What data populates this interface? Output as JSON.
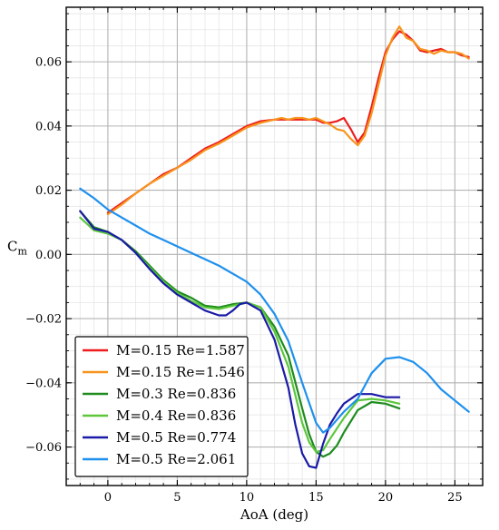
{
  "chart_data": {
    "type": "line",
    "title": "",
    "xlabel": "AoA (deg)",
    "ylabel": "C",
    "ylabel_sub": "m",
    "xlim": [
      -3,
      27
    ],
    "ylim": [
      -0.072,
      0.077
    ],
    "x_ticks": [
      0,
      5,
      10,
      15,
      20,
      25
    ],
    "x_tick_labels": [
      "0",
      "5",
      "10",
      "15",
      "20",
      "25"
    ],
    "y_ticks": [
      -0.06,
      -0.04,
      -0.02,
      0.0,
      0.02,
      0.04,
      0.06
    ],
    "y_tick_labels": [
      "−0.06",
      "−0.04",
      "−0.02",
      "0.00",
      "0.02",
      "0.04",
      "0.06"
    ],
    "grid": true,
    "legend_position": "lower-left",
    "series": [
      {
        "name": "M=0.15 Re=1.587",
        "color": "#ee1c1c",
        "x": [
          0.0,
          1.0,
          2.0,
          3.0,
          4.0,
          5.0,
          6.0,
          7.0,
          8.0,
          9.0,
          10.0,
          11.0,
          12.0,
          13.0,
          14.0,
          15.0,
          15.5,
          16.0,
          16.5,
          17.0,
          17.5,
          18.0,
          18.5,
          19.0,
          19.5,
          20.0,
          20.5,
          21.0,
          21.5,
          22.0,
          22.5,
          23.0,
          23.5,
          24.0,
          24.5,
          25.0,
          25.5,
          26.0
        ],
        "y": [
          0.013,
          0.016,
          0.019,
          0.022,
          0.025,
          0.027,
          0.03,
          0.033,
          0.035,
          0.0375,
          0.04,
          0.0415,
          0.042,
          0.042,
          0.042,
          0.042,
          0.041,
          0.041,
          0.0415,
          0.0425,
          0.039,
          0.035,
          0.038,
          0.046,
          0.055,
          0.063,
          0.067,
          0.0695,
          0.0685,
          0.0665,
          0.0635,
          0.063,
          0.0635,
          0.064,
          0.063,
          0.063,
          0.062,
          0.0615
        ]
      },
      {
        "name": "M=0.15 Re=1.546",
        "color": "#f7941d",
        "x": [
          0.0,
          1.0,
          2.0,
          3.0,
          4.0,
          5.0,
          6.0,
          7.0,
          8.0,
          9.0,
          10.0,
          11.0,
          12.0,
          12.5,
          13.0,
          13.5,
          14.0,
          14.5,
          15.0,
          15.5,
          16.0,
          16.5,
          17.0,
          17.5,
          18.0,
          18.5,
          19.0,
          19.5,
          20.0,
          20.5,
          21.0,
          21.5,
          22.0,
          22.5,
          23.0,
          23.5,
          24.0,
          24.5,
          25.0,
          25.5,
          26.0
        ],
        "y": [
          0.0125,
          0.0155,
          0.019,
          0.022,
          0.0245,
          0.027,
          0.0295,
          0.0325,
          0.0345,
          0.037,
          0.0395,
          0.041,
          0.042,
          0.0425,
          0.042,
          0.0425,
          0.0425,
          0.042,
          0.0425,
          0.0415,
          0.0405,
          0.039,
          0.0385,
          0.036,
          0.034,
          0.037,
          0.044,
          0.053,
          0.062,
          0.0675,
          0.071,
          0.0675,
          0.0665,
          0.064,
          0.0635,
          0.0625,
          0.0635,
          0.063,
          0.063,
          0.0625,
          0.061
        ]
      },
      {
        "name": "M=0.3 Re=0.836",
        "color": "#1e8c1e",
        "x": [
          -2.0,
          -1.0,
          0.0,
          1.0,
          2.0,
          3.0,
          4.0,
          5.0,
          6.0,
          7.0,
          8.0,
          9.0,
          10.0,
          11.0,
          12.0,
          13.0,
          14.0,
          14.5,
          15.0,
          15.5,
          16.0,
          16.5,
          17.0,
          18.0,
          19.0,
          20.0,
          21.0
        ],
        "y": [
          0.0135,
          0.0085,
          0.007,
          0.0045,
          0.001,
          -0.0035,
          -0.008,
          -0.0115,
          -0.0135,
          -0.016,
          -0.0165,
          -0.0155,
          -0.015,
          -0.0165,
          -0.0225,
          -0.0315,
          -0.048,
          -0.056,
          -0.0615,
          -0.063,
          -0.062,
          -0.0595,
          -0.0555,
          -0.0485,
          -0.046,
          -0.0465,
          -0.048
        ]
      },
      {
        "name": "M=0.4 Re=0.836",
        "color": "#5cc73b",
        "x": [
          -2.0,
          -1.0,
          0.0,
          1.0,
          2.0,
          3.0,
          4.0,
          5.0,
          6.0,
          7.0,
          8.0,
          9.0,
          10.0,
          11.0,
          12.0,
          13.0,
          14.0,
          14.5,
          15.0,
          15.5,
          16.0,
          17.0,
          18.0,
          19.0,
          20.0,
          21.0
        ],
        "y": [
          0.0115,
          0.0075,
          0.0065,
          0.0045,
          0.0005,
          -0.004,
          -0.0085,
          -0.012,
          -0.0145,
          -0.0165,
          -0.017,
          -0.016,
          -0.015,
          -0.0165,
          -0.024,
          -0.035,
          -0.0525,
          -0.0585,
          -0.0615,
          -0.061,
          -0.0575,
          -0.051,
          -0.0455,
          -0.045,
          -0.0455,
          -0.0465
        ]
      },
      {
        "name": "M=0.5 Re=0.774",
        "color": "#1a1aa6",
        "x": [
          -2.0,
          -1.0,
          0.0,
          1.0,
          2.0,
          3.0,
          4.0,
          5.0,
          6.0,
          7.0,
          8.0,
          8.5,
          9.0,
          9.5,
          10.0,
          11.0,
          12.0,
          13.0,
          13.5,
          14.0,
          14.5,
          15.0,
          15.5,
          16.0,
          16.5,
          17.0,
          18.0,
          19.0,
          20.0,
          21.0
        ],
        "y": [
          0.0135,
          0.008,
          0.007,
          0.0045,
          0.0005,
          -0.0045,
          -0.009,
          -0.0125,
          -0.015,
          -0.0175,
          -0.019,
          -0.019,
          -0.0175,
          -0.0155,
          -0.015,
          -0.0175,
          -0.0265,
          -0.0415,
          -0.053,
          -0.062,
          -0.066,
          -0.0665,
          -0.059,
          -0.053,
          -0.0495,
          -0.0465,
          -0.0435,
          -0.0435,
          -0.0445,
          -0.0445
        ]
      },
      {
        "name": "M=0.5 Re=2.061",
        "color": "#1e90ee",
        "x": [
          -2.0,
          -1.0,
          0.0,
          1.0,
          2.0,
          3.0,
          4.0,
          5.0,
          6.0,
          7.0,
          8.0,
          9.0,
          10.0,
          11.0,
          12.0,
          13.0,
          14.0,
          15.0,
          15.5,
          16.0,
          17.0,
          18.0,
          18.5,
          19.0,
          20.0,
          21.0,
          22.0,
          23.0,
          24.0,
          25.0,
          26.0
        ],
        "y": [
          0.0205,
          0.0175,
          0.014,
          0.0115,
          0.009,
          0.0065,
          0.0045,
          0.0025,
          0.0005,
          -0.0015,
          -0.0035,
          -0.006,
          -0.0085,
          -0.0125,
          -0.0185,
          -0.027,
          -0.04,
          -0.0525,
          -0.0555,
          -0.054,
          -0.049,
          -0.045,
          -0.041,
          -0.037,
          -0.0325,
          -0.032,
          -0.0335,
          -0.037,
          -0.042,
          -0.0455,
          -0.049
        ]
      }
    ]
  }
}
